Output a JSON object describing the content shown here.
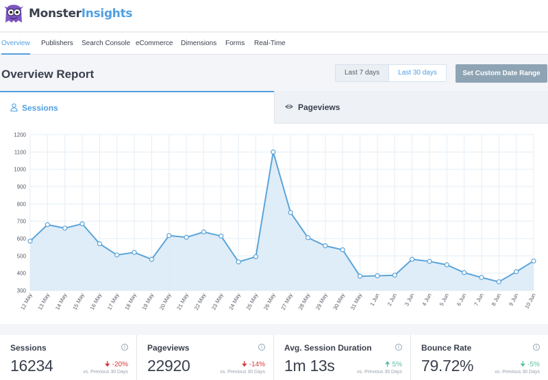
{
  "app": {
    "name_part1": "Monster",
    "name_part2": "Insights"
  },
  "nav": {
    "items": [
      {
        "label": "Overview",
        "active": true
      },
      {
        "label": "Publishers"
      },
      {
        "label": "Search Console"
      },
      {
        "label": "eCommerce"
      },
      {
        "label": "Dimensions"
      },
      {
        "label": "Forms"
      },
      {
        "label": "Real-Time"
      }
    ]
  },
  "report": {
    "title": "Overview Report",
    "range_7": "Last 7 days",
    "range_30": "Last 30 days",
    "custom_range": "Set Custom Date Range"
  },
  "tabs": {
    "sessions": "Sessions",
    "pageviews": "Pageviews"
  },
  "colors": {
    "accent": "#509fe2",
    "line": "#5aa3d8",
    "area": "#dcebf7",
    "down": "#d73638",
    "up": "#5cc0a5"
  },
  "chart_data": {
    "type": "area",
    "x": [
      "12 May",
      "13 May",
      "14 May",
      "15 May",
      "16 May",
      "17 May",
      "18 May",
      "19 May",
      "20 May",
      "21 May",
      "22 May",
      "23 May",
      "24 May",
      "25 May",
      "26 May",
      "27 May",
      "28 May",
      "29 May",
      "30 May",
      "31 May",
      "1 Jun",
      "2 Jun",
      "3 Jun",
      "4 Jun",
      "5 Jun",
      "6 Jun",
      "7 Jun",
      "8 Jun",
      "9 Jun",
      "10 Jun"
    ],
    "series": [
      {
        "values": [
          585,
          680,
          660,
          685,
          570,
          505,
          520,
          480,
          617,
          607,
          638,
          614,
          465,
          495,
          1100,
          750,
          605,
          558,
          535,
          382,
          385,
          388,
          480,
          468,
          448,
          403,
          375,
          350,
          408,
          470
        ]
      }
    ],
    "yticks": [
      300,
      400,
      500,
      600,
      700,
      800,
      900,
      1000,
      1100,
      1200
    ],
    "ylim": [
      300,
      1200
    ],
    "grid": true
  },
  "stats": [
    {
      "label": "Sessions",
      "value": "16234",
      "change": "-20%",
      "direction": "down",
      "sub": "vs. Previous 30 Days"
    },
    {
      "label": "Pageviews",
      "value": "22920",
      "change": "-14%",
      "direction": "down",
      "sub": "vs. Previous 30 Days"
    },
    {
      "label": "Avg. Session Duration",
      "value": "1m 13s",
      "change": "5%",
      "direction": "up",
      "sub": "vs. Previous 30 Days"
    },
    {
      "label": "Bounce Rate",
      "value": "79.72%",
      "change": "-5%",
      "direction": "up",
      "sub": "vs. Previous 30 Days"
    }
  ]
}
